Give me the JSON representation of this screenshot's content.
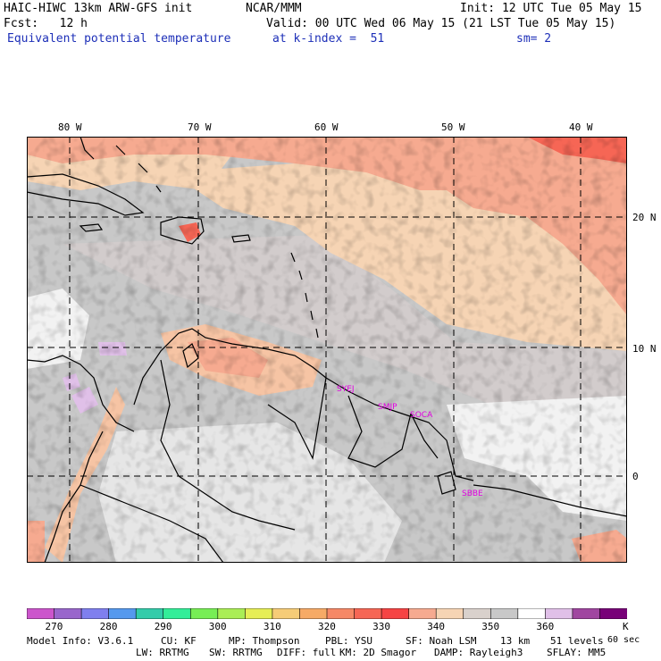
{
  "header": {
    "model": "HAIC-HIWC 13km ARW-GFS init",
    "org": "NCAR/MMM",
    "init": "Init: 12 UTC Tue 05 May 15",
    "fcst": "Fcst:   12 h",
    "valid": "Valid: 00 UTC Wed 06 May 15 (21 LST Tue 05 May 15)",
    "field": "Equivalent potential temperature",
    "level": "at k-index =  51",
    "smooth": "sm= 2"
  },
  "axes": {
    "lon_labels": [
      "80 W",
      "70 W",
      "60 W",
      "50 W",
      "40 W"
    ],
    "lat_labels": [
      "20 N",
      "10 N",
      "0"
    ]
  },
  "stations": [
    "SYEJ",
    "SMJP",
    "SOCA",
    "SBBE"
  ],
  "colorbar": {
    "colors": [
      "#cc55cc",
      "#9966cc",
      "#7f7fee",
      "#5599ee",
      "#33ccaa",
      "#33ee99",
      "#77ee55",
      "#aaee55",
      "#e6ee55",
      "#f6cc77",
      "#f6aa66",
      "#f68866",
      "#f66655",
      "#f64444",
      "#f6aa90",
      "#f6d4b4",
      "#d9d1cc",
      "#c8c8c8",
      "#ffffff",
      "#e0c0e8",
      "#a046a0",
      "#780078"
    ],
    "ticks": [
      "270",
      "280",
      "290",
      "300",
      "310",
      "320",
      "330",
      "340",
      "350",
      "360"
    ],
    "unit": "K"
  },
  "model_info": {
    "line1": [
      "Model Info: V3.6.1",
      "CU: KF",
      "MP: Thompson",
      "PBL: YSU",
      "SF: Noah LSM",
      "13 km",
      "51 levels",
      "60 sec"
    ],
    "line2": [
      "LW: RRTMG",
      "SW: RRTMG",
      "DIFF: full",
      "KM: 2D Smagor",
      "DAMP: Rayleigh3",
      "SFLAY: MM5"
    ]
  },
  "colors": {
    "bg_gray": "#c8c8c8",
    "light_gray": "#d9d1cc",
    "white": "#f2f2f2",
    "peach": "#f6d4b4",
    "salmon": "#f6aa90",
    "red": "#f66655",
    "purple": "#e0c0e8",
    "station": "#e000e0",
    "title_blue": "#1d2fb8"
  }
}
